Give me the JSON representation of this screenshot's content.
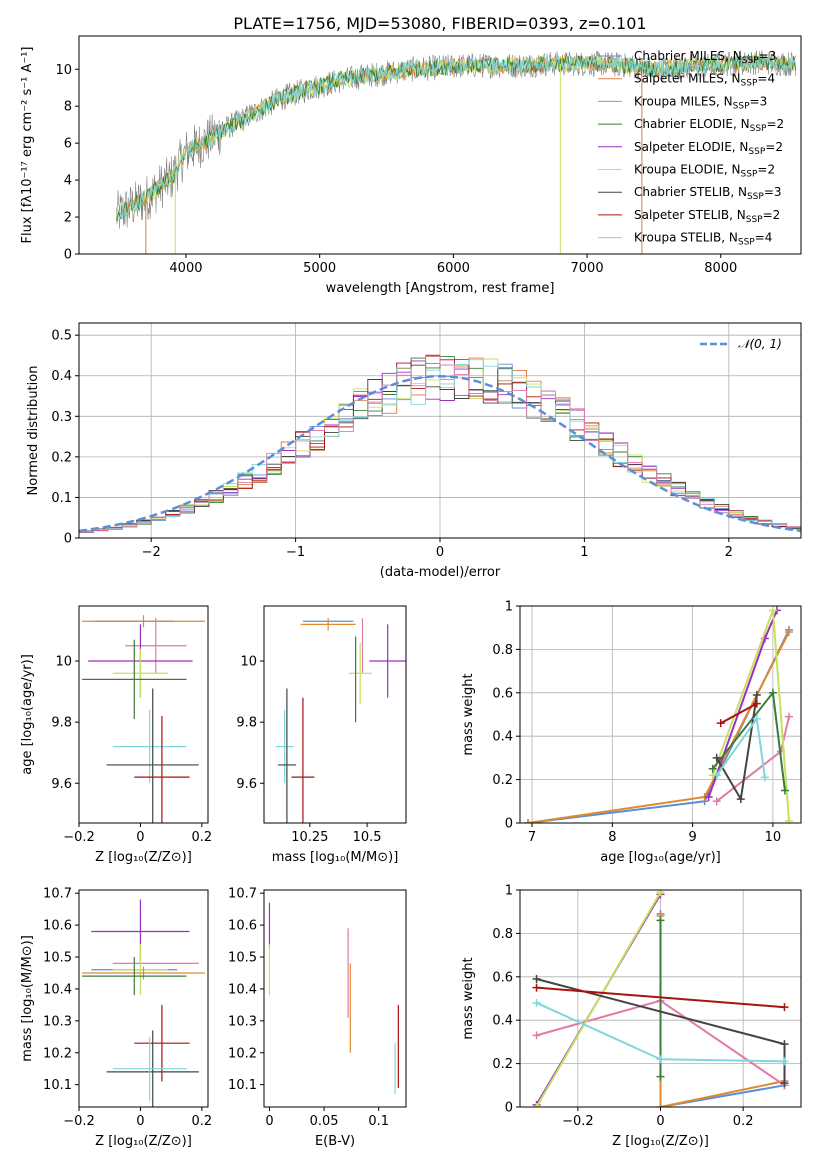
{
  "figure_title": "PLATE=1756, MJD=53080, FIBERID=0393, z=0.101",
  "colors": {
    "Chabrier MILES": "#5b8fd9",
    "Salpeter MILES": "#e07a3a",
    "Kroupa MILES": "#e08a2e",
    "Chabrier ELODIE": "#3a7d3a",
    "Salpeter ELODIE": "#9b30c0",
    "Kroupa ELODIE": "#c8e060",
    "Chabrier STELIB": "#444444",
    "Salpeter STELIB": "#aa1111",
    "Kroupa STELIB": "#7fd6dc",
    "Chabrier MILES (panel 5/6)": "#e07aab"
  },
  "legend_items": [
    {
      "name": "Chabrier MILES",
      "nssp": "3"
    },
    {
      "name": "Salpeter MILES",
      "nssp": "4"
    },
    {
      "name": "Kroupa MILES",
      "nssp": "3"
    },
    {
      "name": "Chabrier ELODIE",
      "nssp": "2"
    },
    {
      "name": "Salpeter ELODIE",
      "nssp": "2"
    },
    {
      "name": "Kroupa ELODIE",
      "nssp": "2"
    },
    {
      "name": "Chabrier STELIB",
      "nssp": "3"
    },
    {
      "name": "Salpeter STELIB",
      "nssp": "2"
    },
    {
      "name": "Kroupa STELIB",
      "nssp": "4"
    }
  ],
  "chart_data": [
    {
      "panel": "spectrum",
      "type": "line",
      "title": "PLATE=1756, MJD=53080, FIBERID=0393, z=0.101",
      "xlabel": "wavelength [Angstrom, rest frame]",
      "ylabel": "Flux [fλ10⁻¹⁷ erg cm⁻² s⁻¹ A⁻¹]",
      "xlim": [
        3200,
        8600
      ],
      "ylim": [
        0,
        11.8
      ],
      "xticks": [
        4000,
        5000,
        6000,
        7000,
        8000
      ],
      "yticks": [
        0,
        2,
        4,
        6,
        8,
        10
      ],
      "grid": false,
      "legend_position": "right",
      "continuum": {
        "x": [
          3500,
          3700,
          3900,
          4000,
          4100,
          4300,
          4500,
          4700,
          4900,
          5100,
          5300,
          5500,
          5700,
          5900,
          6100,
          6300,
          6500,
          6700,
          6900,
          7100,
          7300,
          7500,
          7700,
          7900,
          8100,
          8300,
          8500
        ],
        "y": [
          2.2,
          3.0,
          4.2,
          5.5,
          5.9,
          6.8,
          7.6,
          8.4,
          8.9,
          9.3,
          9.6,
          9.8,
          10.0,
          10.1,
          10.2,
          10.2,
          10.2,
          10.3,
          10.3,
          10.3,
          10.2,
          10.0,
          10.1,
          10.2,
          10.3,
          10.4,
          10.3
        ]
      }
    },
    {
      "panel": "residual-distribution",
      "type": "line",
      "xlabel": "(data-model)/error",
      "ylabel": "Normed distribution",
      "xlim": [
        -2.5,
        2.5
      ],
      "ylim": [
        0,
        0.53
      ],
      "xticks": [
        -2,
        -1,
        0,
        1,
        2
      ],
      "yticks": [
        0.0,
        0.1,
        0.2,
        0.3,
        0.4,
        0.5
      ],
      "grid": true,
      "legend": "𝒩(0, 1)",
      "legend_position": "top-right",
      "gaussian": {
        "mu": 0,
        "sigma": 1
      }
    },
    {
      "panel": "age-vs-Z",
      "type": "scatter",
      "xlabel": "Z [log₁₀(Z/Z⊙)]",
      "ylabel": "age  [log₁₀(age/yr)]",
      "xlim": [
        -0.2,
        0.22
      ],
      "ylim": [
        9.47,
        10.18
      ],
      "xticks": [
        -0.2,
        0.0,
        0.2
      ],
      "yticks": [
        9.6,
        9.8,
        10.0
      ],
      "points": [
        {
          "x": -0.02,
          "y": 10.13,
          "xerr": 0.13,
          "yerr": 0.0,
          "c": "#5b8fd9"
        },
        {
          "x": 0.01,
          "y": 10.13,
          "xerr": 0.2,
          "yerr": 0.02,
          "c": "#e08a2e"
        },
        {
          "x": 0.05,
          "y": 10.05,
          "xerr": 0.1,
          "yerr": 0.09,
          "c": "#e07aab"
        },
        {
          "x": 0.0,
          "y": 10.0,
          "xerr": 0.17,
          "yerr": 0.12,
          "c": "#9b30c0"
        },
        {
          "x": 0.0,
          "y": 9.96,
          "xerr": 0.09,
          "yerr": 0.08,
          "c": "#c8e060"
        },
        {
          "x": -0.02,
          "y": 9.94,
          "xerr": 0.17,
          "yerr": 0.13,
          "c": "#3a7d3a"
        },
        {
          "x": 0.03,
          "y": 9.72,
          "xerr": 0.12,
          "yerr": 0.12,
          "c": "#7fd6dc"
        },
        {
          "x": 0.04,
          "y": 9.66,
          "xerr": 0.15,
          "yerr": 0.25,
          "c": "#444444"
        },
        {
          "x": 0.07,
          "y": 9.62,
          "xerr": 0.09,
          "yerr": 0.2,
          "c": "#aa1111"
        }
      ]
    },
    {
      "panel": "age-vs-mass",
      "type": "scatter",
      "xlabel": "mass [log₁₀(M/M⊙)]",
      "ylabel": "",
      "xlim": [
        10.05,
        10.67
      ],
      "ylim": [
        9.47,
        10.18
      ],
      "xticks": [
        10.25,
        10.5
      ],
      "yticks": [
        9.6,
        9.8,
        10.0
      ],
      "points": [
        {
          "x": 10.33,
          "y": 10.13,
          "xerr": 0.11,
          "yerr": 0.0,
          "c": "#5b8fd9"
        },
        {
          "x": 10.33,
          "y": 10.12,
          "xerr": 0.12,
          "yerr": 0.02,
          "c": "#e08a2e"
        },
        {
          "x": 10.48,
          "y": 10.05,
          "xerr": 0.0,
          "yerr": 0.09,
          "c": "#e07aab"
        },
        {
          "x": 10.59,
          "y": 10.0,
          "xerr": 0.08,
          "yerr": 0.12,
          "c": "#9b30c0"
        },
        {
          "x": 10.47,
          "y": 9.96,
          "xerr": 0.05,
          "yerr": 0.1,
          "c": "#c8e060"
        },
        {
          "x": 10.45,
          "y": 9.94,
          "xerr": 0.0,
          "yerr": 0.14,
          "c": "#3a7d3a"
        },
        {
          "x": 10.14,
          "y": 9.72,
          "xerr": 0.04,
          "yerr": 0.12,
          "c": "#7fd6dc"
        },
        {
          "x": 10.15,
          "y": 9.66,
          "xerr": 0.04,
          "yerr": 0.25,
          "c": "#444444"
        },
        {
          "x": 10.22,
          "y": 9.62,
          "xerr": 0.05,
          "yerr": 0.26,
          "c": "#aa1111"
        }
      ]
    },
    {
      "panel": "mass-weight-vs-age",
      "type": "line",
      "xlabel": "age  [log₁₀(age/yr)]",
      "ylabel": "mass weight",
      "xlim": [
        6.85,
        10.35
      ],
      "ylim": [
        0,
        1
      ],
      "xticks": [
        7,
        8,
        9,
        10
      ],
      "yticks": [
        0.0,
        0.2,
        0.4,
        0.6,
        0.8,
        1.0
      ],
      "grid": true,
      "series": [
        {
          "c": "#5b8fd9",
          "x": [
            6.95,
            9.15,
            10.2
          ],
          "y": [
            0.0,
            0.1,
            0.89
          ]
        },
        {
          "c": "#e08a2e",
          "x": [
            6.95,
            9.15,
            10.2
          ],
          "y": [
            0.0,
            0.12,
            0.88
          ]
        },
        {
          "c": "#e07aab",
          "x": [
            9.3,
            10.1,
            10.2
          ],
          "y": [
            0.1,
            0.33,
            0.49
          ]
        },
        {
          "c": "#9b30c0",
          "x": [
            9.2,
            9.9,
            10.05
          ],
          "y": [
            0.12,
            0.85,
            0.98
          ]
        },
        {
          "c": "#c8e060",
          "x": [
            9.25,
            10.0,
            10.2
          ],
          "y": [
            0.22,
            0.98,
            0.01
          ]
        },
        {
          "c": "#3a7d3a",
          "x": [
            9.25,
            10.0,
            10.15
          ],
          "y": [
            0.25,
            0.6,
            0.15
          ]
        },
        {
          "c": "#444444",
          "x": [
            9.3,
            9.6,
            9.8
          ],
          "y": [
            0.3,
            0.11,
            0.59
          ]
        },
        {
          "c": "#aa1111",
          "x": [
            9.35,
            9.8
          ],
          "y": [
            0.46,
            0.55
          ]
        },
        {
          "c": "#7fd6dc",
          "x": [
            9.3,
            9.8,
            9.9
          ],
          "y": [
            0.22,
            0.48,
            0.21
          ]
        }
      ]
    },
    {
      "panel": "mass-vs-Z",
      "type": "scatter",
      "xlabel": "Z [log₁₀(Z/Z⊙)]",
      "ylabel": "mass [log₁₀(M/M⊙)]",
      "xlim": [
        -0.2,
        0.22
      ],
      "ylim": [
        10.03,
        10.71
      ],
      "xticks": [
        -0.2,
        0.0,
        0.2
      ],
      "yticks": [
        10.1,
        10.2,
        10.3,
        10.4,
        10.5,
        10.6,
        10.7
      ],
      "points": [
        {
          "x": 0.0,
          "y": 10.58,
          "xerr": 0.16,
          "yerr": 0.1,
          "c": "#9b30c0"
        },
        {
          "x": 0.05,
          "y": 10.48,
          "xerr": 0.14,
          "yerr": 0.0,
          "c": "#e07aab"
        },
        {
          "x": -0.02,
          "y": 10.46,
          "xerr": 0.14,
          "yerr": 0.0,
          "c": "#5b8fd9"
        },
        {
          "x": 0.0,
          "y": 10.46,
          "xerr": 0.09,
          "yerr": 0.08,
          "c": "#c8e060"
        },
        {
          "x": 0.01,
          "y": 10.45,
          "xerr": 0.2,
          "yerr": 0.02,
          "c": "#e08a2e"
        },
        {
          "x": -0.02,
          "y": 10.44,
          "xerr": 0.17,
          "yerr": 0.06,
          "c": "#3a7d3a"
        },
        {
          "x": 0.07,
          "y": 10.23,
          "xerr": 0.09,
          "yerr": 0.12,
          "c": "#aa1111"
        },
        {
          "x": 0.04,
          "y": 10.14,
          "xerr": 0.15,
          "yerr": 0.13,
          "c": "#444444"
        },
        {
          "x": 0.03,
          "y": 10.15,
          "xerr": 0.12,
          "yerr": 0.1,
          "c": "#7fd6dc"
        }
      ]
    },
    {
      "panel": "mass-vs-ebv",
      "type": "scatter",
      "xlabel": "E(B-V)",
      "ylabel": "",
      "xlim": [
        -0.005,
        0.125
      ],
      "ylim": [
        10.03,
        10.71
      ],
      "xticks": [
        0.0,
        0.05,
        0.1
      ],
      "yticks": [
        10.1,
        10.2,
        10.3,
        10.4,
        10.5,
        10.6,
        10.7
      ],
      "points": [
        {
          "x": 0.0,
          "y": 10.6,
          "xerr": 0.0,
          "yerr": 0.07,
          "c": "#9b30c0"
        },
        {
          "x": 0.0,
          "y": 10.46,
          "xerr": 0.0,
          "yerr": 0.08,
          "c": "#c8e060"
        },
        {
          "x": 0.072,
          "y": 10.45,
          "xerr": 0.0,
          "yerr": 0.14,
          "c": "#e07aab"
        },
        {
          "x": 0.074,
          "y": 10.34,
          "xerr": 0.0,
          "yerr": 0.14,
          "c": "#e08a2e"
        },
        {
          "x": 0.115,
          "y": 10.15,
          "xerr": 0.0,
          "yerr": 0.08,
          "c": "#7fd6dc"
        },
        {
          "x": 0.118,
          "y": 10.22,
          "xerr": 0.0,
          "yerr": 0.13,
          "c": "#aa1111"
        }
      ]
    },
    {
      "panel": "mass-weight-vs-Z",
      "type": "line",
      "xlabel": "Z [log₁₀(Z/Z⊙)]",
      "ylabel": "mass weight",
      "xlim": [
        -0.34,
        0.34
      ],
      "ylim": [
        0,
        1
      ],
      "xticks": [
        -0.2,
        0.0,
        0.2
      ],
      "yticks": [
        0.0,
        0.2,
        0.4,
        0.6,
        0.8,
        1.0
      ],
      "grid": true,
      "series": [
        {
          "c": "#5b8fd9",
          "x": [
            0.0,
            0.0,
            0.3
          ],
          "y": [
            0.89,
            0.0,
            0.1
          ]
        },
        {
          "c": "#e08a2e",
          "x": [
            0.0,
            0.0,
            0.3
          ],
          "y": [
            0.88,
            0.0,
            0.12
          ]
        },
        {
          "c": "#e07aab",
          "x": [
            -0.3,
            0.0,
            0.3
          ],
          "y": [
            0.33,
            0.49,
            0.1
          ]
        },
        {
          "c": "#9b30c0",
          "x": [
            -0.3,
            0.0
          ],
          "y": [
            0.01,
            0.98
          ]
        },
        {
          "c": "#c8e060",
          "x": [
            -0.3,
            0.0
          ],
          "y": [
            0.0,
            0.99
          ]
        },
        {
          "c": "#3a7d3a",
          "x": [
            0.0,
            0.0
          ],
          "y": [
            0.14,
            0.86
          ]
        },
        {
          "c": "#444444",
          "x": [
            -0.3,
            0.3,
            0.3
          ],
          "y": [
            0.59,
            0.29,
            0.11
          ]
        },
        {
          "c": "#aa1111",
          "x": [
            -0.3,
            0.3
          ],
          "y": [
            0.55,
            0.46
          ]
        },
        {
          "c": "#7fd6dc",
          "x": [
            -0.3,
            0.0,
            0.3
          ],
          "y": [
            0.48,
            0.22,
            0.21
          ]
        }
      ]
    }
  ]
}
